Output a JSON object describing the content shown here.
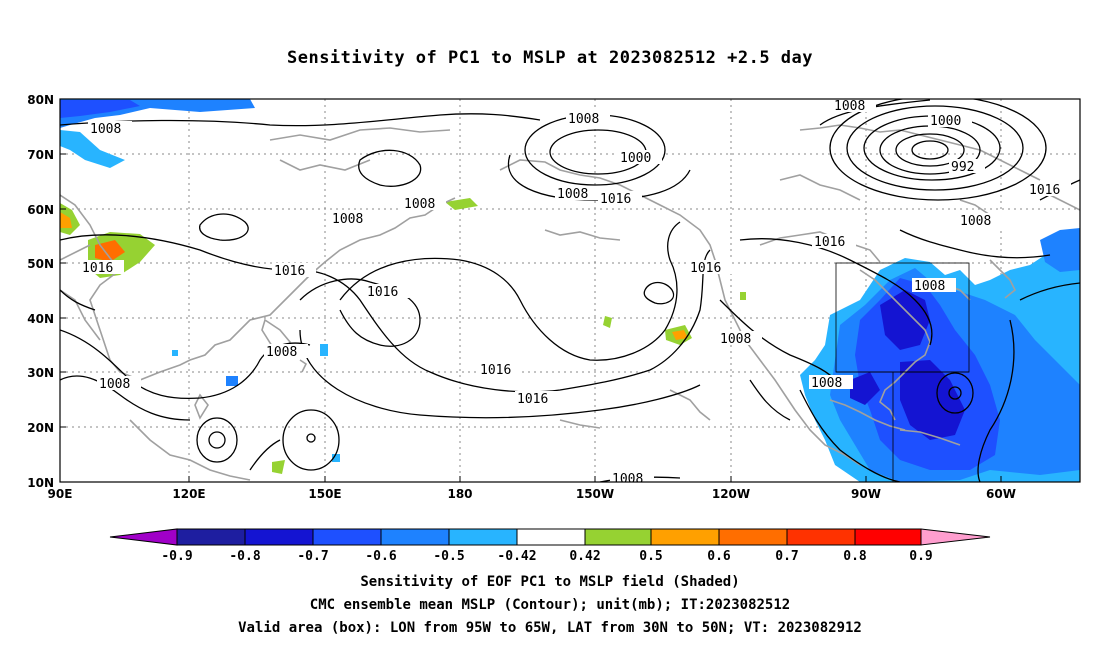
{
  "title": "Sensitivity of PC1 to MSLP at 2023082512 +2.5 day",
  "lat_ticks": [
    "80N",
    "70N",
    "60N",
    "50N",
    "40N",
    "30N",
    "20N",
    "10N"
  ],
  "lon_ticks": [
    "90E",
    "120E",
    "150E",
    "180",
    "150W",
    "120W",
    "90W",
    "60W"
  ],
  "contour_labels": [
    "1008",
    "1008",
    "1000",
    "992",
    "1008",
    "1008",
    "1016",
    "1008",
    "1016",
    "1016",
    "1016",
    "1016",
    "1016",
    "1016",
    "1016",
    "1008",
    "1008",
    "1016",
    "1008",
    "1008",
    "1008",
    "1008",
    "1016"
  ],
  "colorbar": {
    "labels": [
      "-0.9",
      "-0.8",
      "-0.7",
      "-0.6",
      "-0.5",
      "-0.42",
      "0.42",
      "0.5",
      "0.6",
      "0.7",
      "0.8",
      "0.9"
    ],
    "colors": [
      "#a000c8",
      "#1e1ea0",
      "#1414d2",
      "#1e50ff",
      "#1e82ff",
      "#28b4ff",
      "#ffffff",
      "#96d232",
      "#ffa000",
      "#ff6e00",
      "#ff3200",
      "#ff0000",
      "#ff9ecf"
    ]
  },
  "caption": {
    "line1": "Sensitivity of EOF PC1 to MSLP field (Shaded)",
    "line2": "CMC ensemble mean MSLP (Contour); unit(mb); IT:2023082512",
    "line3": "Valid area (box): LON from 95W to 65W, LAT from 30N to 50N; VT: 2023082912"
  }
}
